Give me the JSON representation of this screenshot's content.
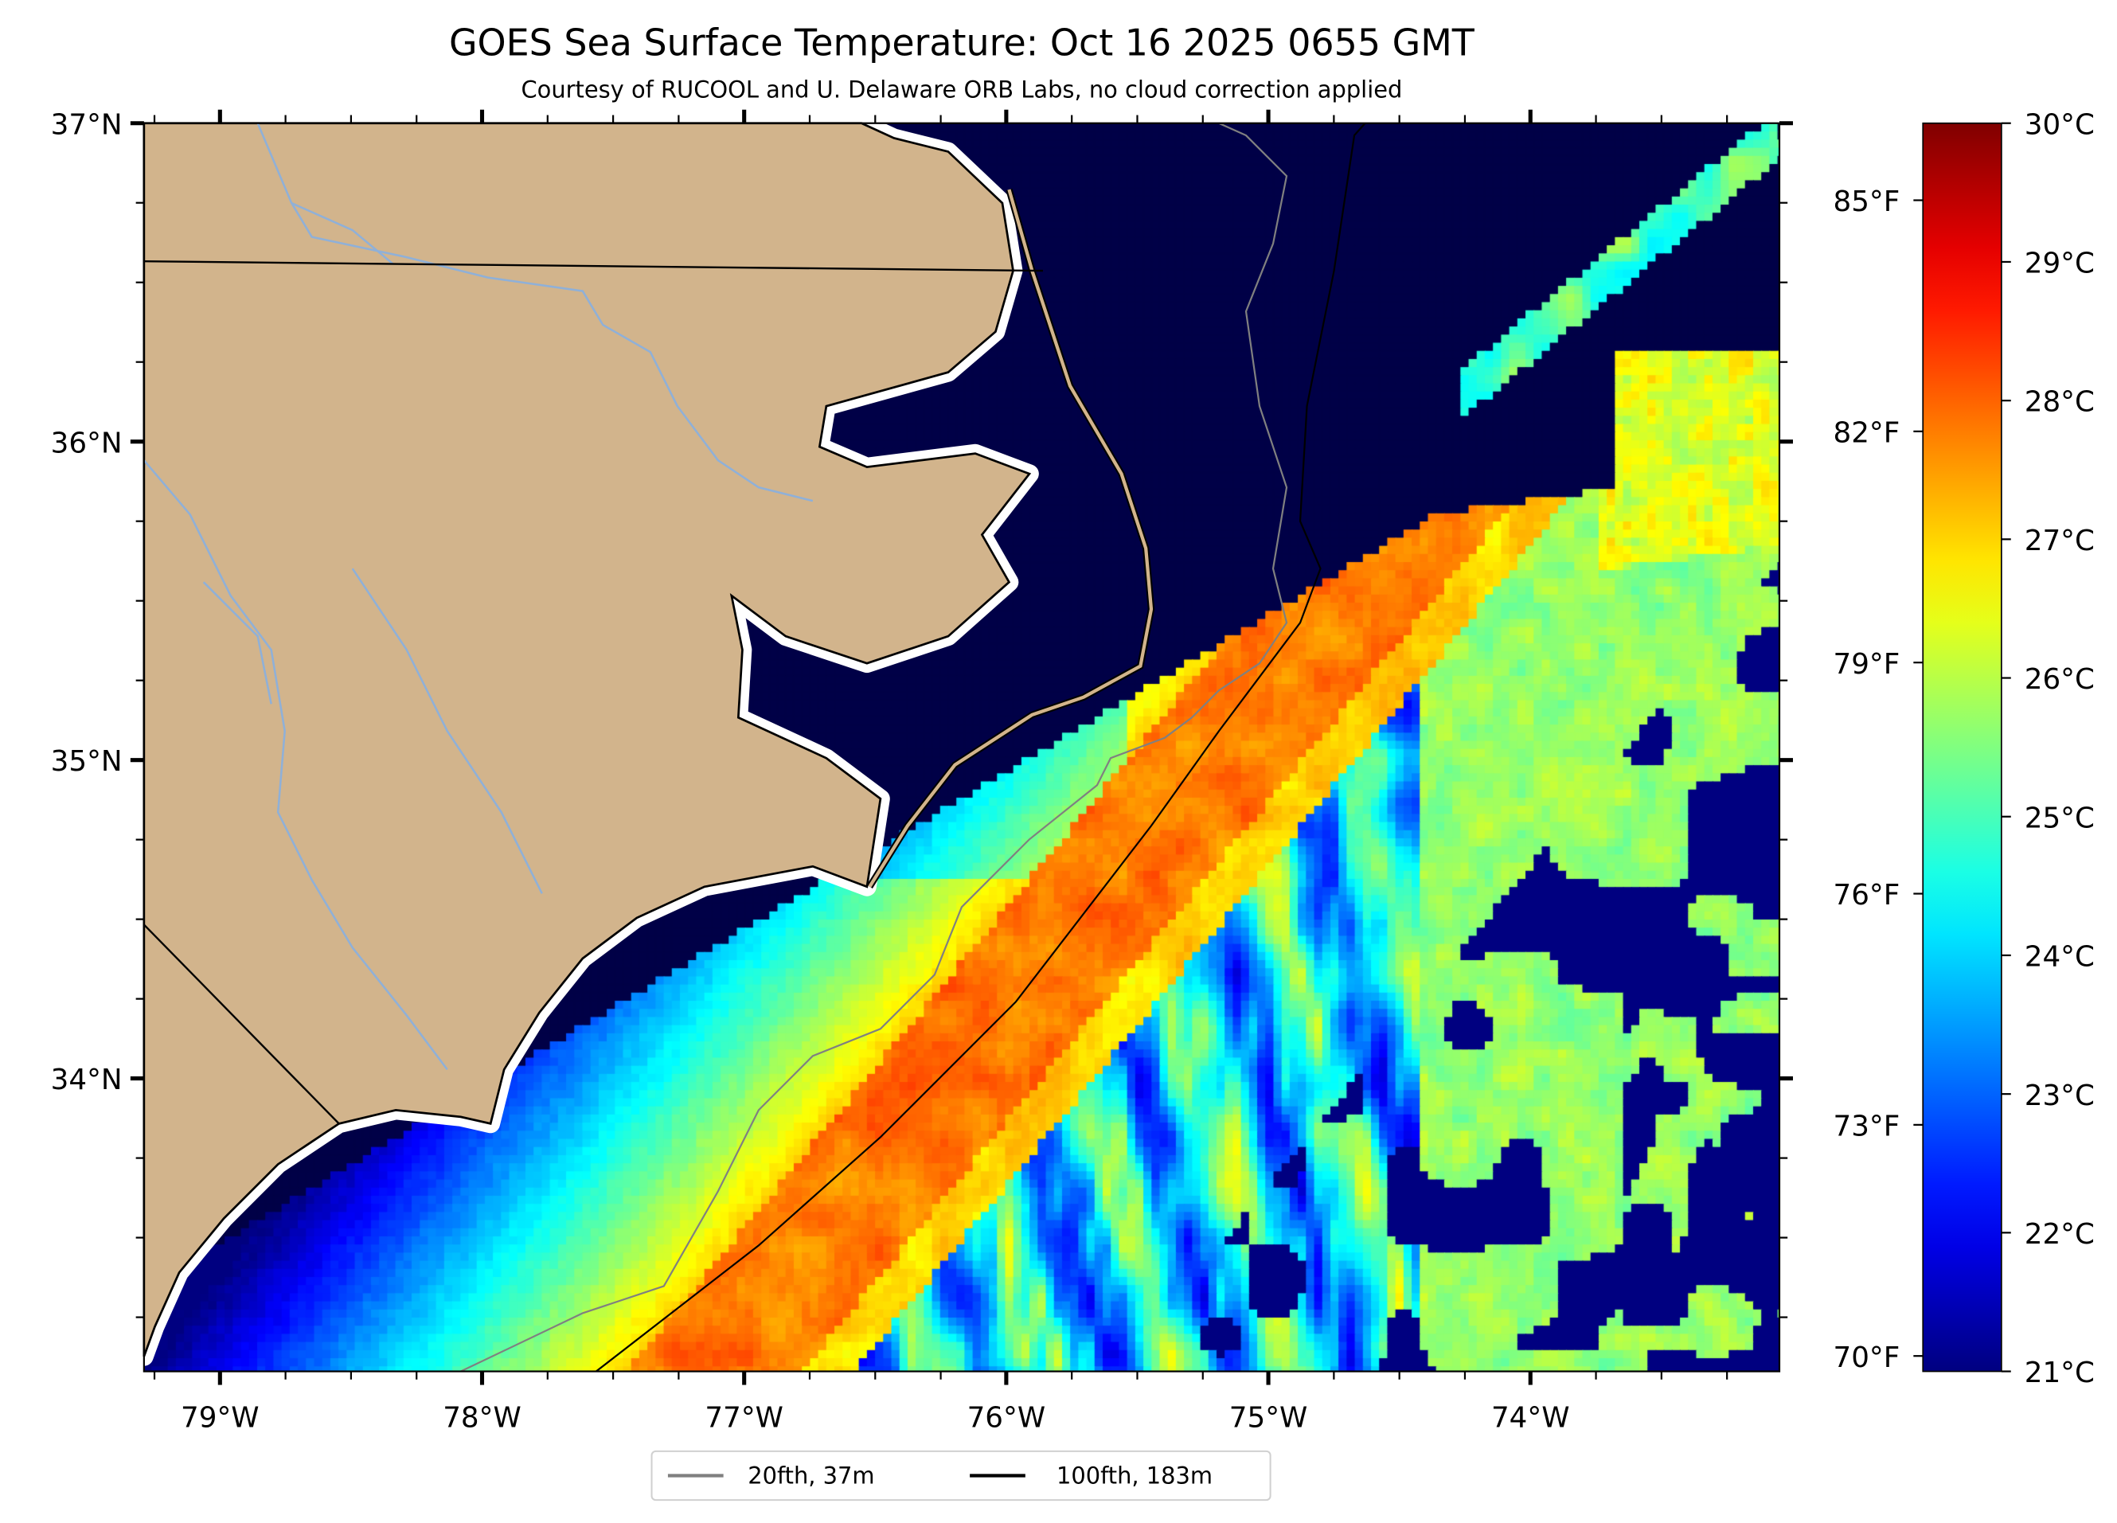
{
  "chart_data": {
    "type": "heatmap",
    "title": "GOES Sea Surface Temperature: Oct 16 2025 0655 GMT",
    "subtitle": "Courtesy of RUCOOL and U. Delaware ORB Labs, no cloud correction applied",
    "x_ticks": [
      "79°W",
      "78°W",
      "77°W",
      "76°W",
      "75°W",
      "74°W"
    ],
    "x_tick_values": [
      -79,
      -78,
      -77,
      -76,
      -75,
      -74
    ],
    "y_ticks": [
      "37°N",
      "36°N",
      "35°N",
      "34°N"
    ],
    "y_tick_values": [
      37,
      36,
      35,
      34
    ],
    "xlim": [
      -79.29,
      -73.05
    ],
    "ylim": [
      33.08,
      37.0
    ],
    "colorbar": {
      "colormap": "jet",
      "range_c": [
        21,
        30
      ],
      "ticks_c": [
        "21°C",
        "22°C",
        "23°C",
        "24°C",
        "25°C",
        "26°C",
        "27°C",
        "28°C",
        "29°C",
        "30°C"
      ],
      "tick_values_c": [
        21,
        22,
        23,
        24,
        25,
        26,
        27,
        28,
        29,
        30
      ],
      "ticks_f": [
        "70°F",
        "73°F",
        "76°F",
        "79°F",
        "82°F",
        "85°F"
      ],
      "tick_values_f": [
        70,
        73,
        76,
        79,
        82,
        85
      ]
    },
    "legend": {
      "placement": "bottom-center",
      "entries": [
        {
          "label": "20fth, 37m",
          "color": "#808080"
        },
        {
          "label": "100fth, 183m",
          "color": "#000000"
        }
      ]
    },
    "colors": {
      "land": "#d2b48c",
      "rivers": "#8fb0d8",
      "borders": "#000000"
    }
  }
}
